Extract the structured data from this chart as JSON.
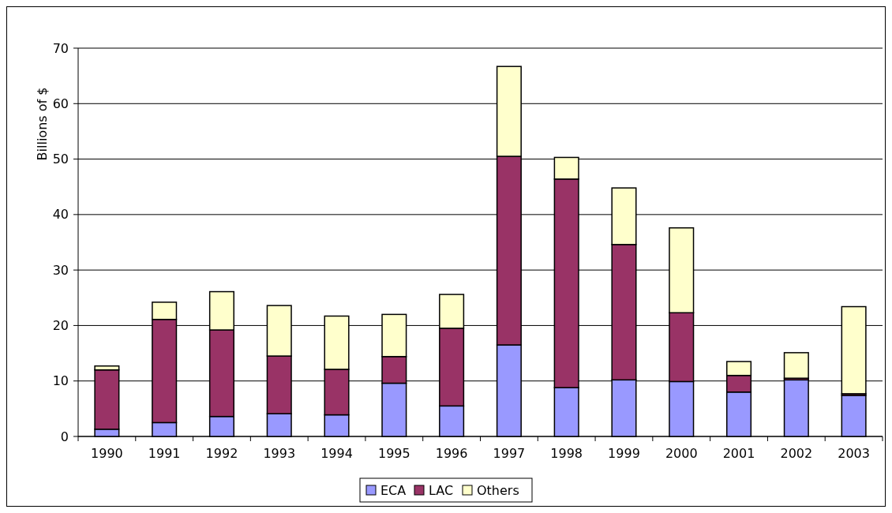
{
  "chart_data": {
    "type": "bar",
    "stacked": true,
    "ylabel": "Billions of $",
    "categories": [
      "1990",
      "1991",
      "1992",
      "1993",
      "1994",
      "1995",
      "1996",
      "1997",
      "1998",
      "1999",
      "2000",
      "2001",
      "2002",
      "2003"
    ],
    "series": [
      {
        "name": "ECA",
        "color": "#9999ff",
        "values": [
          1.3,
          2.5,
          3.6,
          4.1,
          3.9,
          9.6,
          5.5,
          16.5,
          8.8,
          10.2,
          9.9,
          8.0,
          10.2,
          7.4
        ]
      },
      {
        "name": "LAC",
        "color": "#993366",
        "values": [
          10.7,
          18.6,
          15.6,
          10.4,
          8.2,
          4.8,
          14.0,
          34.0,
          37.6,
          24.4,
          12.4,
          3.0,
          0.3,
          0.3
        ]
      },
      {
        "name": "Others",
        "color": "#ffffcc",
        "values": [
          0.7,
          3.1,
          6.9,
          9.1,
          9.6,
          7.6,
          6.1,
          16.2,
          3.9,
          10.2,
          15.3,
          2.5,
          4.6,
          15.7
        ]
      }
    ],
    "ylim": [
      0,
      70
    ],
    "yticks": [
      0,
      10,
      20,
      30,
      40,
      50,
      60,
      70
    ],
    "grid": "y",
    "legend": "bottom"
  }
}
